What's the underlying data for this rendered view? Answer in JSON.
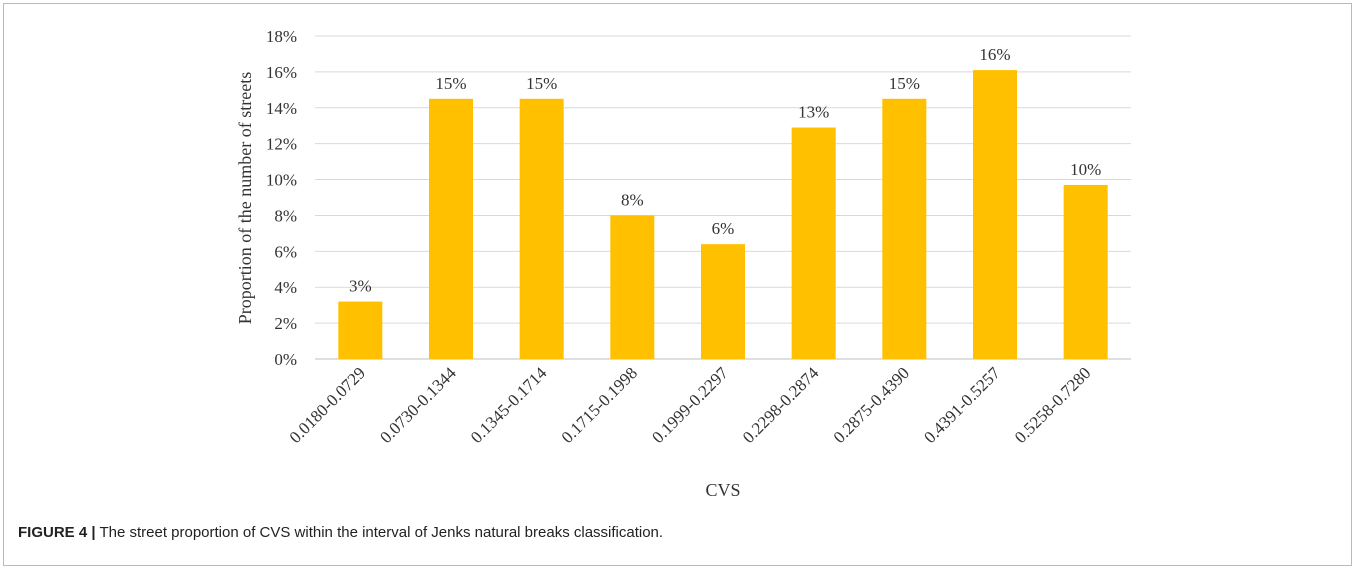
{
  "chart_data": {
    "type": "bar",
    "title": "",
    "xlabel": "CVS",
    "ylabel": "Proportion of the number of streets",
    "ylim": [
      0,
      18
    ],
    "yticks": [
      "0%",
      "2%",
      "4%",
      "6%",
      "8%",
      "10%",
      "12%",
      "14%",
      "16%",
      "18%"
    ],
    "categories": [
      "0.0180-0.0729",
      "0.0730-0.1344",
      "0.1345-0.1714",
      "0.1715-0.1998",
      "0.1999-0.2297",
      "0.2298-0.2874",
      "0.2875-0.4390",
      "0.4391-0.5257",
      "0.5258-0.7280"
    ],
    "values": [
      3.2,
      14.5,
      14.5,
      8.0,
      6.4,
      12.9,
      14.5,
      16.1,
      9.7
    ],
    "data_labels": [
      "3%",
      "15%",
      "15%",
      "8%",
      "6%",
      "13%",
      "15%",
      "16%",
      "10%"
    ],
    "bar_color": "#FFC000",
    "grid": true,
    "legend": "none"
  },
  "caption": {
    "label": "FIGURE 4 |",
    "text": "The street proportion of CVS within the interval of Jenks natural breaks classification."
  }
}
